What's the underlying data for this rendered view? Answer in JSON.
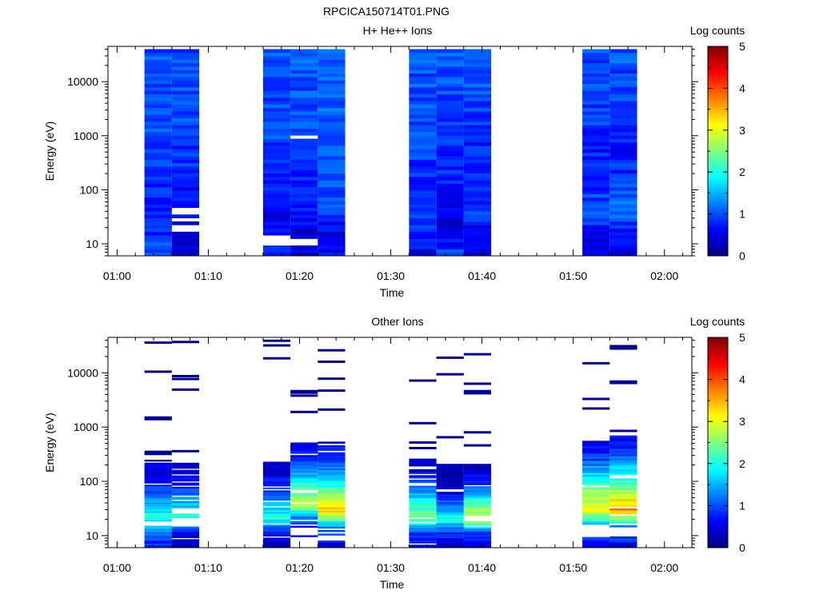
{
  "figure_title": "RPCICA150714T01.PNG",
  "chart_data": [
    {
      "type": "heatmap",
      "title": "H+ He++ Ions",
      "xlabel": "Time",
      "ylabel": "Energy (eV)",
      "xlim": [
        "00:59",
        "02:03"
      ],
      "ylim": [
        6,
        45000
      ],
      "yscale": "log",
      "x_ticks": [
        "01:00",
        "01:10",
        "01:20",
        "01:30",
        "01:40",
        "01:50",
        "02:00"
      ],
      "y_ticks": [
        "10",
        "100",
        "1000",
        "10000"
      ],
      "colorbar": {
        "label": "Log counts",
        "range": [
          0,
          5
        ],
        "ticks": [
          "0",
          "1",
          "2",
          "3",
          "4",
          "5"
        ]
      },
      "columns": [
        {
          "t0": "01:03",
          "t1": "01:06",
          "emin": 6,
          "emax": 40000,
          "profile": [
            1.0,
            0.8,
            0.75,
            0.8,
            0.85,
            0.9,
            0.95,
            0.95,
            1.0,
            1.0,
            1.0
          ],
          "gaps": []
        },
        {
          "t0": "01:06",
          "t1": "01:09",
          "emin": 6,
          "emax": 40000,
          "profile": [
            0.5,
            0.5,
            0.6,
            0.7,
            0.8,
            0.85,
            0.9,
            0.95,
            1.0,
            1.0,
            1.0
          ],
          "gaps": [
            [
              18,
              22
            ],
            [
              25,
              30
            ],
            [
              34,
              44
            ]
          ]
        },
        {
          "t0": "01:16",
          "t1": "01:19",
          "emin": 6,
          "emax": 40000,
          "profile": [
            0.8,
            0.5,
            0.6,
            0.7,
            0.8,
            0.9,
            0.95,
            1.0,
            1.0,
            1.0,
            1.0
          ],
          "gaps": [
            [
              9.5,
              15
            ]
          ]
        },
        {
          "t0": "01:19",
          "t1": "01:22",
          "emin": 6,
          "emax": 40000,
          "profile": [
            0.5,
            0.4,
            0.7,
            0.8,
            0.85,
            0.9,
            0.95,
            1.0,
            1.0,
            1.0,
            1.0
          ],
          "gaps": [
            [
              9.5,
              13
            ],
            [
              880,
              950
            ]
          ]
        },
        {
          "t0": "01:22",
          "t1": "01:25",
          "emin": 6,
          "emax": 40000,
          "profile": [
            0.6,
            0.5,
            0.9,
            1.0,
            1.0,
            1.05,
            1.1,
            1.1,
            1.1,
            1.1,
            1.1
          ],
          "gaps": []
        },
        {
          "t0": "01:32",
          "t1": "01:35",
          "emin": 6,
          "emax": 40000,
          "profile": [
            0.5,
            0.8,
            0.8,
            0.8,
            0.85,
            0.9,
            0.95,
            1.0,
            1.0,
            1.0,
            1.0
          ],
          "gaps": []
        },
        {
          "t0": "01:35",
          "t1": "01:38",
          "emin": 6,
          "emax": 40000,
          "profile": [
            1.1,
            0.4,
            0.6,
            0.7,
            0.8,
            0.85,
            0.9,
            0.95,
            1.0,
            1.0,
            1.0
          ],
          "gaps": []
        },
        {
          "t0": "01:38",
          "t1": "01:41",
          "emin": 6,
          "emax": 40000,
          "profile": [
            0.6,
            0.6,
            0.9,
            0.8,
            0.7,
            0.75,
            0.85,
            0.95,
            1.0,
            1.0,
            1.0
          ],
          "gaps": [
            [
              106,
              116
            ]
          ]
        },
        {
          "t0": "01:51",
          "t1": "01:54",
          "emin": 6,
          "emax": 40000,
          "profile": [
            0.4,
            0.6,
            1.0,
            0.9,
            0.8,
            0.8,
            0.85,
            0.9,
            0.95,
            1.0,
            1.0
          ],
          "gaps": []
        },
        {
          "t0": "01:54",
          "t1": "01:57",
          "emin": 6,
          "emax": 40000,
          "profile": [
            0.6,
            0.6,
            1.2,
            1.0,
            0.8,
            0.7,
            0.8,
            0.9,
            0.95,
            1.0,
            1.0
          ],
          "gaps": []
        }
      ]
    },
    {
      "type": "heatmap",
      "title": "Other Ions",
      "xlabel": "Time",
      "ylabel": "Energy (eV)",
      "xlim": [
        "00:59",
        "02:03"
      ],
      "ylim": [
        6,
        45000
      ],
      "yscale": "log",
      "x_ticks": [
        "01:00",
        "01:10",
        "01:20",
        "01:30",
        "01:40",
        "01:50",
        "02:00"
      ],
      "y_ticks": [
        "10",
        "100",
        "1000",
        "10000"
      ],
      "colorbar": {
        "label": "Log counts",
        "range": [
          0,
          5
        ],
        "ticks": [
          "0",
          "1",
          "2",
          "3",
          "4",
          "5"
        ]
      },
      "columns": [
        {
          "t0": "01:03",
          "t1": "01:06",
          "emin": 6,
          "emax": 250,
          "profile": [
            0.7,
            1.2,
            2.0,
            1.5,
            0.9,
            0.5,
            0.3
          ],
          "gaps": [
            [
              15,
              18
            ]
          ],
          "lines": [
            1400,
            1500,
            320,
            350,
            10500,
            36000
          ]
        },
        {
          "t0": "01:06",
          "t1": "01:09",
          "emin": 6,
          "emax": 220,
          "profile": [
            0.3,
            0.6,
            2.1,
            1.6,
            1.0,
            0.6,
            0.3
          ],
          "gaps": [
            [
              15,
              21
            ]
          ],
          "lines": [
            360,
            4900,
            7700,
            8700,
            37000
          ]
        },
        {
          "t0": "01:16",
          "t1": "01:19",
          "emin": 6,
          "emax": 230,
          "profile": [
            0.3,
            0.7,
            2.0,
            1.5,
            0.9,
            0.5,
            0.3
          ],
          "gaps": [
            [
              9,
              10
            ],
            [
              16,
              17
            ]
          ],
          "lines": [
            18500,
            32000,
            39000
          ]
        },
        {
          "t0": "01:19",
          "t1": "01:22",
          "emin": 9.5,
          "emax": 520,
          "profile": [
            0.5,
            0.9,
            2.8,
            2.3,
            1.4,
            0.8,
            0.4
          ],
          "gaps": [
            [
              10,
              14
            ]
          ],
          "lines": [
            1900,
            3800,
            4300,
            4600
          ]
        },
        {
          "t0": "01:22",
          "t1": "01:25",
          "emin": 6,
          "emax": 540,
          "profile": [
            0.5,
            1.0,
            3.4,
            2.6,
            1.5,
            0.9,
            0.5
          ],
          "gaps": [
            [
              9,
              10
            ]
          ],
          "lines": [
            2100,
            4700,
            7800,
            16000,
            26000
          ]
        },
        {
          "t0": "01:32",
          "t1": "01:35",
          "emin": 6,
          "emax": 280,
          "profile": [
            0.5,
            1.0,
            2.6,
            1.9,
            1.1,
            0.6,
            0.3
          ],
          "gaps": [
            [
              20,
              22
            ]
          ],
          "lines": [
            410,
            520,
            1180,
            7200
          ]
        },
        {
          "t0": "01:35",
          "t1": "01:38",
          "emin": 6,
          "emax": 210,
          "profile": [
            0.4,
            0.8,
            2.0,
            1.2,
            0.5,
            0.3,
            0.2
          ],
          "gaps": [
            [
              66,
              74
            ]
          ],
          "lines": [
            650,
            9400,
            19000
          ]
        },
        {
          "t0": "01:38",
          "t1": "01:41",
          "emin": 6,
          "emax": 210,
          "profile": [
            0.4,
            0.9,
            2.9,
            2.4,
            1.2,
            0.6,
            0.3
          ],
          "gaps": [
            [
              20,
              23
            ]
          ],
          "lines": [
            460,
            800,
            4200,
            4600,
            6300,
            22000
          ]
        },
        {
          "t0": "01:51",
          "t1": "01:54",
          "emin": 6,
          "emax": 560,
          "profile": [
            0.5,
            1.2,
            3.0,
            2.7,
            1.8,
            0.9,
            0.4
          ],
          "gaps": [
            [
              9.5,
              16
            ]
          ],
          "lines": [
            2200,
            3300,
            15000
          ]
        },
        {
          "t0": "01:54",
          "t1": "01:57",
          "emin": 6,
          "emax": 700,
          "profile": [
            0.5,
            1.2,
            3.7,
            2.6,
            1.8,
            1.0,
            0.5
          ],
          "gaps": [
            [
              9.5,
              14
            ],
            [
              32,
              35
            ]
          ],
          "lines": [
            850,
            6500,
            6900,
            28000,
            31000
          ]
        }
      ]
    }
  ]
}
